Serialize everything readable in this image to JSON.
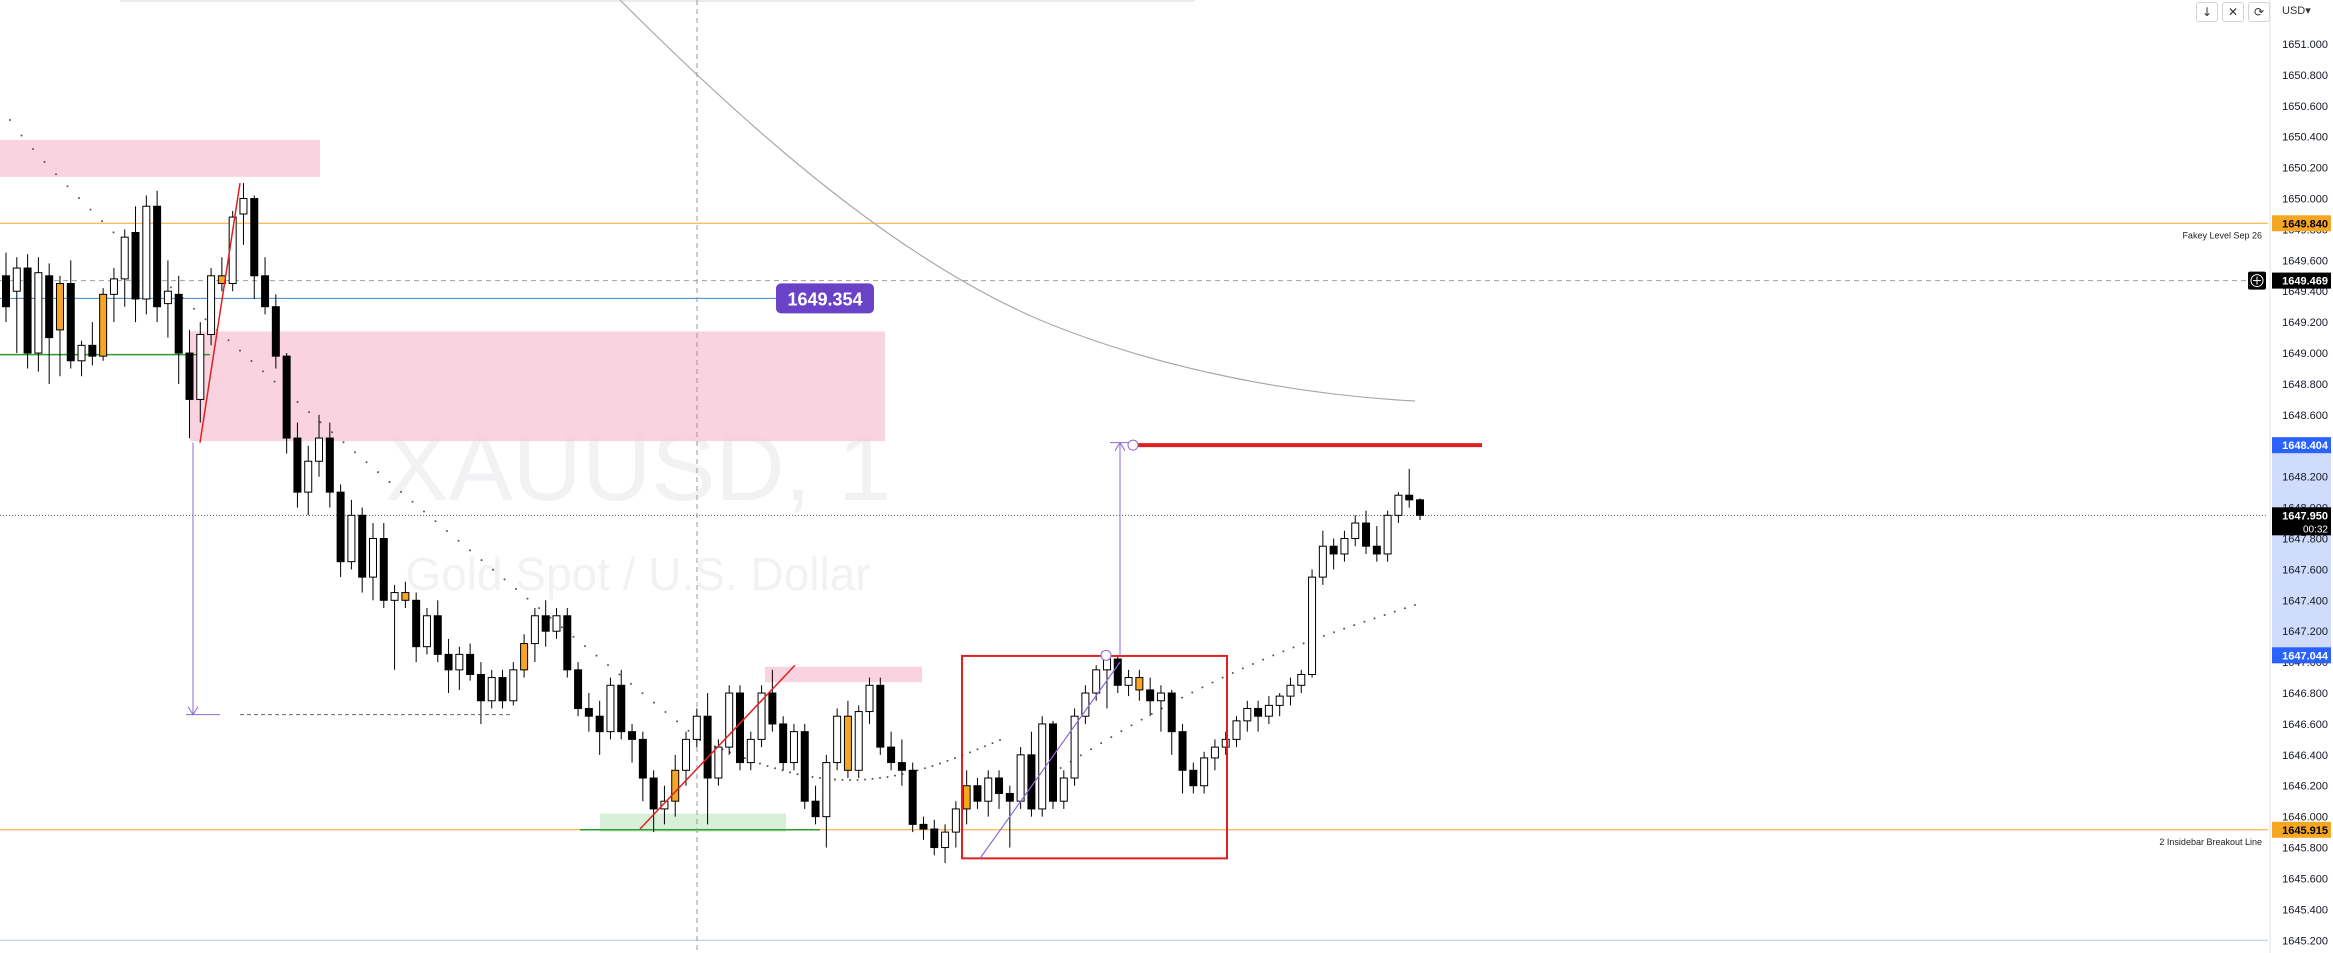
{
  "header": {
    "buttons": [
      {
        "name": "down-arrow-icon",
        "glyph": "↓"
      },
      {
        "name": "cross-icon",
        "glyph": "✕"
      },
      {
        "name": "refresh-icon",
        "glyph": "⟳"
      }
    ],
    "currency": "USD",
    "currency_caret": "▾"
  },
  "colors": {
    "bull_body": "#ffffff",
    "bear_body": "#000000",
    "highlight_body": "#f5a623",
    "zone_pink": "#f8c8d8",
    "zone_green": "#cdeccd",
    "box_red": "#e02020",
    "level_orange": "#f5a623",
    "level_blue": "#3d85c6",
    "marker_purple": "#8e6ad6",
    "price_tag_blue": "#2962ff"
  },
  "chart_data": {
    "type": "candlestick",
    "watermark": {
      "symbol": "XAUUSD, 1",
      "name": "Gold Spot / U.S. Dollar"
    },
    "y_axis": {
      "ylim": [
        1645.15,
        1651.22
      ],
      "ticks": [
        "1651.000",
        "1650.800",
        "1650.600",
        "1650.400",
        "1650.200",
        "1650.000",
        "1649.800",
        "1649.600",
        "1649.400",
        "1649.200",
        "1649.000",
        "1648.800",
        "1648.600",
        "1648.400",
        "1648.200",
        "1648.000",
        "1647.800",
        "1647.600",
        "1647.400",
        "1647.200",
        "1647.000",
        "1646.800",
        "1646.600",
        "1646.400",
        "1646.200",
        "1646.000",
        "1645.800",
        "1645.600",
        "1645.400",
        "1645.200"
      ],
      "tick_values": [
        1651.0,
        1650.8,
        1650.6,
        1650.4,
        1650.2,
        1650.0,
        1649.8,
        1649.6,
        1649.4,
        1649.2,
        1649.0,
        1648.8,
        1648.6,
        1648.4,
        1648.2,
        1648.0,
        1647.8,
        1647.6,
        1647.4,
        1647.2,
        1647.0,
        1646.8,
        1646.6,
        1646.4,
        1646.2,
        1646.0,
        1645.8,
        1645.6,
        1645.4,
        1645.2
      ]
    },
    "price_labels": [
      {
        "value": 1649.84,
        "text": "1649.840",
        "bg": "#f5a623",
        "fg": "#000000"
      },
      {
        "value": 1649.469,
        "text": "1649.469",
        "bg": "#000000",
        "fg": "#ffffff",
        "icon": "plus-icon"
      },
      {
        "value": 1648.404,
        "text": "1648.404",
        "bg": "#2962ff",
        "fg": "#ffffff"
      },
      {
        "value": 1647.95,
        "text": "1647.950",
        "sub": "00:32",
        "bg": "#000000",
        "fg": "#ffffff"
      },
      {
        "value": 1647.044,
        "text": "1647.044",
        "bg": "#2962ff",
        "fg": "#ffffff"
      },
      {
        "value": 1645.915,
        "text": "1645.915",
        "bg": "#f5a623",
        "fg": "#000000"
      }
    ],
    "horizontal_levels": [
      {
        "value": 1649.84,
        "label": "Fakey Level Sep 26",
        "color": "#f5a623"
      },
      {
        "value": 1645.915,
        "label": "2 Insidebar Breakout Line",
        "color": "#f5a623"
      },
      {
        "value": 1649.469,
        "label": "",
        "color": "#9e9e9e",
        "style": "dashed"
      },
      {
        "value": 1647.95,
        "label": "",
        "color": "#555555",
        "style": "dotted"
      },
      {
        "value": 1645.2,
        "label": "",
        "color": "#b7c7e0"
      }
    ],
    "annotations": {
      "price_tag": "1649.354",
      "price_tag_value": 1649.354,
      "red_target_value": 1648.404
    },
    "candles": [
      {
        "o": 1649.5,
        "h": 1649.65,
        "l": 1649.2,
        "c": 1649.3
      },
      {
        "o": 1649.4,
        "h": 1649.62,
        "l": 1649.0,
        "c": 1649.55
      },
      {
        "o": 1649.55,
        "h": 1649.64,
        "l": 1648.9,
        "c": 1649.0
      },
      {
        "o": 1649.0,
        "h": 1649.62,
        "l": 1648.88,
        "c": 1649.52
      },
      {
        "o": 1649.5,
        "h": 1649.58,
        "l": 1648.8,
        "c": 1649.1
      },
      {
        "o": 1649.15,
        "h": 1649.5,
        "l": 1648.85,
        "c": 1649.45
      },
      {
        "o": 1649.45,
        "h": 1649.6,
        "l": 1648.9,
        "c": 1648.95
      },
      {
        "o": 1648.95,
        "h": 1649.08,
        "l": 1648.85,
        "c": 1649.05
      },
      {
        "o": 1649.05,
        "h": 1649.2,
        "l": 1648.92,
        "c": 1648.98
      },
      {
        "o": 1648.98,
        "h": 1649.42,
        "l": 1648.95,
        "c": 1649.38
      },
      {
        "o": 1649.38,
        "h": 1649.55,
        "l": 1649.2,
        "c": 1649.48
      },
      {
        "o": 1649.48,
        "h": 1649.8,
        "l": 1649.3,
        "c": 1649.75
      },
      {
        "o": 1649.78,
        "h": 1649.95,
        "l": 1649.2,
        "c": 1649.35
      },
      {
        "o": 1649.35,
        "h": 1650.02,
        "l": 1649.25,
        "c": 1649.95
      },
      {
        "o": 1649.95,
        "h": 1650.05,
        "l": 1649.2,
        "c": 1649.3
      },
      {
        "o": 1649.32,
        "h": 1649.6,
        "l": 1649.1,
        "c": 1649.4
      },
      {
        "o": 1649.38,
        "h": 1649.5,
        "l": 1648.8,
        "c": 1649.0
      },
      {
        "o": 1649.0,
        "h": 1649.15,
        "l": 1648.45,
        "c": 1648.7
      },
      {
        "o": 1648.7,
        "h": 1649.2,
        "l": 1648.55,
        "c": 1649.12
      },
      {
        "o": 1649.12,
        "h": 1649.55,
        "l": 1649.05,
        "c": 1649.5
      },
      {
        "o": 1649.5,
        "h": 1649.62,
        "l": 1649.4,
        "c": 1649.45
      },
      {
        "o": 1649.45,
        "h": 1649.92,
        "l": 1649.4,
        "c": 1649.88
      },
      {
        "o": 1649.9,
        "h": 1650.1,
        "l": 1649.7,
        "c": 1650.0
      },
      {
        "o": 1650.0,
        "h": 1650.02,
        "l": 1649.35,
        "c": 1649.5
      },
      {
        "o": 1649.5,
        "h": 1649.62,
        "l": 1649.25,
        "c": 1649.3
      },
      {
        "o": 1649.3,
        "h": 1649.38,
        "l": 1648.9,
        "c": 1648.98
      },
      {
        "o": 1648.98,
        "h": 1649.0,
        "l": 1648.35,
        "c": 1648.45
      },
      {
        "o": 1648.45,
        "h": 1648.55,
        "l": 1648.0,
        "c": 1648.1
      },
      {
        "o": 1648.1,
        "h": 1648.4,
        "l": 1647.95,
        "c": 1648.3
      },
      {
        "o": 1648.3,
        "h": 1648.6,
        "l": 1648.2,
        "c": 1648.45
      },
      {
        "o": 1648.45,
        "h": 1648.55,
        "l": 1648.0,
        "c": 1648.1
      },
      {
        "o": 1648.1,
        "h": 1648.15,
        "l": 1647.55,
        "c": 1647.65
      },
      {
        "o": 1647.65,
        "h": 1648.05,
        "l": 1647.6,
        "c": 1647.95
      },
      {
        "o": 1647.95,
        "h": 1648.0,
        "l": 1647.45,
        "c": 1647.55
      },
      {
        "o": 1647.55,
        "h": 1647.9,
        "l": 1647.4,
        "c": 1647.8
      },
      {
        "o": 1647.8,
        "h": 1647.9,
        "l": 1647.35,
        "c": 1647.4
      },
      {
        "o": 1647.4,
        "h": 1647.5,
        "l": 1646.95,
        "c": 1647.45
      },
      {
        "o": 1647.45,
        "h": 1647.52,
        "l": 1647.35,
        "c": 1647.4
      },
      {
        "o": 1647.4,
        "h": 1647.45,
        "l": 1647.0,
        "c": 1647.1
      },
      {
        "o": 1647.1,
        "h": 1647.35,
        "l": 1647.05,
        "c": 1647.3
      },
      {
        "o": 1647.3,
        "h": 1647.4,
        "l": 1647.0,
        "c": 1647.05
      },
      {
        "o": 1647.05,
        "h": 1647.15,
        "l": 1646.8,
        "c": 1646.95
      },
      {
        "o": 1646.95,
        "h": 1647.1,
        "l": 1646.82,
        "c": 1647.05
      },
      {
        "o": 1647.05,
        "h": 1647.12,
        "l": 1646.88,
        "c": 1646.92
      },
      {
        "o": 1646.92,
        "h": 1647.0,
        "l": 1646.6,
        "c": 1646.75
      },
      {
        "o": 1646.75,
        "h": 1646.95,
        "l": 1646.7,
        "c": 1646.9
      },
      {
        "o": 1646.9,
        "h": 1646.95,
        "l": 1646.7,
        "c": 1646.75
      },
      {
        "o": 1646.75,
        "h": 1647.0,
        "l": 1646.72,
        "c": 1646.95
      },
      {
        "o": 1646.95,
        "h": 1647.18,
        "l": 1646.9,
        "c": 1647.12
      },
      {
        "o": 1647.12,
        "h": 1647.35,
        "l": 1647.0,
        "c": 1647.3
      },
      {
        "o": 1647.3,
        "h": 1647.4,
        "l": 1647.1,
        "c": 1647.2
      },
      {
        "o": 1647.2,
        "h": 1647.35,
        "l": 1647.15,
        "c": 1647.3
      },
      {
        "o": 1647.3,
        "h": 1647.35,
        "l": 1646.9,
        "c": 1646.95
      },
      {
        "o": 1646.95,
        "h": 1647.0,
        "l": 1646.65,
        "c": 1646.7
      },
      {
        "o": 1646.7,
        "h": 1646.8,
        "l": 1646.55,
        "c": 1646.65
      },
      {
        "o": 1646.65,
        "h": 1646.75,
        "l": 1646.4,
        "c": 1646.55
      },
      {
        "o": 1646.55,
        "h": 1646.9,
        "l": 1646.5,
        "c": 1646.85
      },
      {
        "o": 1646.85,
        "h": 1646.95,
        "l": 1646.5,
        "c": 1646.55
      },
      {
        "o": 1646.55,
        "h": 1646.6,
        "l": 1646.35,
        "c": 1646.5
      },
      {
        "o": 1646.5,
        "h": 1646.55,
        "l": 1646.1,
        "c": 1646.25
      },
      {
        "o": 1646.25,
        "h": 1646.3,
        "l": 1645.9,
        "c": 1646.05
      },
      {
        "o": 1646.05,
        "h": 1646.2,
        "l": 1645.95,
        "c": 1646.1
      },
      {
        "o": 1646.1,
        "h": 1646.4,
        "l": 1646.0,
        "c": 1646.3
      },
      {
        "o": 1646.3,
        "h": 1646.55,
        "l": 1646.2,
        "c": 1646.5
      },
      {
        "o": 1646.5,
        "h": 1646.7,
        "l": 1646.45,
        "c": 1646.65
      },
      {
        "o": 1646.65,
        "h": 1646.8,
        "l": 1645.95,
        "c": 1646.25
      },
      {
        "o": 1646.25,
        "h": 1646.5,
        "l": 1646.2,
        "c": 1646.45
      },
      {
        "o": 1646.45,
        "h": 1646.85,
        "l": 1646.4,
        "c": 1646.8
      },
      {
        "o": 1646.8,
        "h": 1646.85,
        "l": 1646.3,
        "c": 1646.35
      },
      {
        "o": 1646.35,
        "h": 1646.55,
        "l": 1646.3,
        "c": 1646.5
      },
      {
        "o": 1646.5,
        "h": 1646.85,
        "l": 1646.45,
        "c": 1646.8
      },
      {
        "o": 1646.8,
        "h": 1646.95,
        "l": 1646.55,
        "c": 1646.6
      },
      {
        "o": 1646.6,
        "h": 1646.65,
        "l": 1646.3,
        "c": 1646.35
      },
      {
        "o": 1646.35,
        "h": 1646.6,
        "l": 1646.3,
        "c": 1646.55
      },
      {
        "o": 1646.55,
        "h": 1646.6,
        "l": 1646.05,
        "c": 1646.1
      },
      {
        "o": 1646.1,
        "h": 1646.2,
        "l": 1645.95,
        "c": 1646.0
      },
      {
        "o": 1646.0,
        "h": 1646.4,
        "l": 1645.8,
        "c": 1646.35
      },
      {
        "o": 1646.35,
        "h": 1646.7,
        "l": 1646.3,
        "c": 1646.65
      },
      {
        "o": 1646.65,
        "h": 1646.75,
        "l": 1646.25,
        "c": 1646.3
      },
      {
        "o": 1646.3,
        "h": 1646.72,
        "l": 1646.25,
        "c": 1646.68
      },
      {
        "o": 1646.68,
        "h": 1646.9,
        "l": 1646.6,
        "c": 1646.85
      },
      {
        "o": 1646.85,
        "h": 1646.9,
        "l": 1646.4,
        "c": 1646.45
      },
      {
        "o": 1646.45,
        "h": 1646.55,
        "l": 1646.3,
        "c": 1646.35
      },
      {
        "o": 1646.35,
        "h": 1646.5,
        "l": 1646.2,
        "c": 1646.3
      },
      {
        "o": 1646.3,
        "h": 1646.35,
        "l": 1645.9,
        "c": 1645.95
      },
      {
        "o": 1645.95,
        "h": 1646.0,
        "l": 1645.85,
        "c": 1645.92
      },
      {
        "o": 1645.92,
        "h": 1645.98,
        "l": 1645.75,
        "c": 1645.8
      },
      {
        "o": 1645.8,
        "h": 1645.95,
        "l": 1645.7,
        "c": 1645.9
      },
      {
        "o": 1645.9,
        "h": 1646.1,
        "l": 1645.8,
        "c": 1646.05
      },
      {
        "o": 1646.05,
        "h": 1646.3,
        "l": 1645.95,
        "c": 1646.2
      },
      {
        "o": 1646.2,
        "h": 1646.25,
        "l": 1646.05,
        "c": 1646.1
      },
      {
        "o": 1646.1,
        "h": 1646.3,
        "l": 1646.0,
        "c": 1646.25
      },
      {
        "o": 1646.25,
        "h": 1646.3,
        "l": 1646.05,
        "c": 1646.15
      },
      {
        "o": 1646.15,
        "h": 1646.2,
        "l": 1645.8,
        "c": 1646.1
      },
      {
        "o": 1646.1,
        "h": 1646.45,
        "l": 1646.05,
        "c": 1646.4
      },
      {
        "o": 1646.4,
        "h": 1646.55,
        "l": 1646.0,
        "c": 1646.05
      },
      {
        "o": 1646.05,
        "h": 1646.65,
        "l": 1646.0,
        "c": 1646.6
      },
      {
        "o": 1646.6,
        "h": 1646.62,
        "l": 1646.05,
        "c": 1646.1
      },
      {
        "o": 1646.1,
        "h": 1646.3,
        "l": 1646.05,
        "c": 1646.25
      },
      {
        "o": 1646.25,
        "h": 1646.7,
        "l": 1646.2,
        "c": 1646.65
      },
      {
        "o": 1646.65,
        "h": 1646.85,
        "l": 1646.6,
        "c": 1646.8
      },
      {
        "o": 1646.8,
        "h": 1646.98,
        "l": 1646.75,
        "c": 1646.95
      },
      {
        "o": 1646.95,
        "h": 1647.05,
        "l": 1646.7,
        "c": 1647.02
      },
      {
        "o": 1647.02,
        "h": 1647.04,
        "l": 1646.8,
        "c": 1646.85
      },
      {
        "o": 1646.85,
        "h": 1646.95,
        "l": 1646.78,
        "c": 1646.9
      },
      {
        "o": 1646.9,
        "h": 1646.95,
        "l": 1646.75,
        "c": 1646.82
      },
      {
        "o": 1646.82,
        "h": 1646.9,
        "l": 1646.65,
        "c": 1646.75
      },
      {
        "o": 1646.75,
        "h": 1646.85,
        "l": 1646.55,
        "c": 1646.8
      },
      {
        "o": 1646.8,
        "h": 1646.82,
        "l": 1646.4,
        "c": 1646.55
      },
      {
        "o": 1646.55,
        "h": 1646.6,
        "l": 1646.15,
        "c": 1646.3
      },
      {
        "o": 1646.3,
        "h": 1646.35,
        "l": 1646.15,
        "c": 1646.2
      },
      {
        "o": 1646.2,
        "h": 1646.42,
        "l": 1646.15,
        "c": 1646.38
      },
      {
        "o": 1646.38,
        "h": 1646.5,
        "l": 1646.3,
        "c": 1646.45
      },
      {
        "o": 1646.45,
        "h": 1646.55,
        "l": 1646.4,
        "c": 1646.5
      },
      {
        "o": 1646.5,
        "h": 1646.65,
        "l": 1646.45,
        "c": 1646.62
      },
      {
        "o": 1646.62,
        "h": 1646.75,
        "l": 1646.55,
        "c": 1646.7
      },
      {
        "o": 1646.7,
        "h": 1646.75,
        "l": 1646.55,
        "c": 1646.65
      },
      {
        "o": 1646.65,
        "h": 1646.78,
        "l": 1646.6,
        "c": 1646.72
      },
      {
        "o": 1646.72,
        "h": 1646.8,
        "l": 1646.65,
        "c": 1646.78
      },
      {
        "o": 1646.78,
        "h": 1646.9,
        "l": 1646.72,
        "c": 1646.85
      },
      {
        "o": 1646.85,
        "h": 1646.95,
        "l": 1646.8,
        "c": 1646.92
      },
      {
        "o": 1646.92,
        "h": 1647.6,
        "l": 1646.9,
        "c": 1647.55
      },
      {
        "o": 1647.55,
        "h": 1647.85,
        "l": 1647.5,
        "c": 1647.75
      },
      {
        "o": 1647.75,
        "h": 1647.8,
        "l": 1647.6,
        "c": 1647.7
      },
      {
        "o": 1647.7,
        "h": 1647.85,
        "l": 1647.65,
        "c": 1647.8
      },
      {
        "o": 1647.8,
        "h": 1647.95,
        "l": 1647.75,
        "c": 1647.9
      },
      {
        "o": 1647.9,
        "h": 1647.98,
        "l": 1647.7,
        "c": 1647.75
      },
      {
        "o": 1647.75,
        "h": 1647.88,
        "l": 1647.65,
        "c": 1647.7
      },
      {
        "o": 1647.7,
        "h": 1647.98,
        "l": 1647.65,
        "c": 1647.95
      },
      {
        "o": 1647.95,
        "h": 1648.1,
        "l": 1647.9,
        "c": 1648.08
      },
      {
        "o": 1648.08,
        "h": 1648.25,
        "l": 1648.0,
        "c": 1648.05
      },
      {
        "o": 1648.05,
        "h": 1648.06,
        "l": 1647.92,
        "c": 1647.95
      }
    ],
    "highlighted_candles": [
      5,
      9,
      20,
      37,
      48,
      62,
      78,
      89,
      105
    ]
  }
}
